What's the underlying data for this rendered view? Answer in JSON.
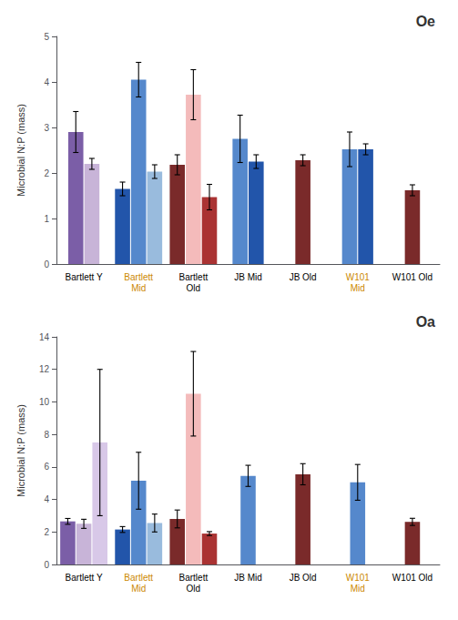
{
  "chart_data": [
    {
      "type": "bar",
      "title": "Oe",
      "ylabel": "Microbial N:P (mass)",
      "categories": [
        "Bartlett Y",
        "Bartlett\nMid",
        "Bartlett\nOld",
        "JB Mid",
        "JB Old",
        "W101\nMid",
        "W101 Old"
      ],
      "label_colors": [
        "black",
        "#CC8800",
        "black",
        "black",
        "black",
        "#CC8800",
        "black"
      ],
      "values": [
        [
          2.9,
          2.2
        ],
        [
          1.65,
          4.05,
          2.03
        ],
        [
          2.18,
          3.72,
          1.47
        ],
        [
          2.75,
          2.25
        ],
        [
          2.28
        ],
        [
          2.52,
          2.52
        ],
        [
          1.62
        ]
      ],
      "errors": [
        [
          0.45,
          0.12
        ],
        [
          0.15,
          0.38,
          0.15
        ],
        [
          0.22,
          0.55,
          0.28
        ],
        [
          0.52,
          0.15
        ],
        [
          0.12
        ],
        [
          0.38,
          0.12
        ],
        [
          0.12
        ]
      ],
      "colors": [
        [
          "#7B5EA7",
          "#C8B4D8"
        ],
        [
          "#2255AA",
          "#5588CC",
          "#99BBDD"
        ],
        [
          "#7A2A2A",
          "#F4BBBB",
          "#AA3333"
        ],
        [
          "#5588CC",
          "#2255AA"
        ],
        [
          "#7A2A2A"
        ],
        [
          "#5588CC",
          "#2255AA"
        ],
        [
          "#7A2A2A"
        ]
      ],
      "ylim": [
        0,
        5
      ],
      "yticks": [
        0,
        1,
        2,
        3,
        4,
        5
      ],
      "grid": false
    },
    {
      "type": "bar",
      "title": "Oa",
      "ylabel": "Microbial N:P (mass)",
      "categories": [
        "Bartlett Y",
        "Bartlett\nMid",
        "Bartlett\nOld",
        "JB Mid",
        "JB Old",
        "W101\nMid",
        "W101 Old"
      ],
      "label_colors": [
        "black",
        "#CC8800",
        "black",
        "black",
        "black",
        "#CC8800",
        "black"
      ],
      "values": [
        [
          2.65,
          2.5,
          7.5
        ],
        [
          2.15,
          5.15,
          2.55
        ],
        [
          2.8,
          10.5,
          1.9
        ],
        [
          5.45
        ],
        [
          5.55
        ],
        [
          5.05
        ],
        [
          2.62
        ]
      ],
      "errors": [
        [
          0.18,
          0.28,
          4.5
        ],
        [
          0.18,
          1.75,
          0.55
        ],
        [
          0.55,
          2.6,
          0.12
        ],
        [
          0.65
        ],
        [
          0.65
        ],
        [
          1.1
        ],
        [
          0.22
        ]
      ],
      "colors": [
        [
          "#7B5EA7",
          "#C8B4D8",
          "#D8C8E8"
        ],
        [
          "#2255AA",
          "#5588CC",
          "#99BBDD"
        ],
        [
          "#7A2A2A",
          "#F4BBBB",
          "#AA3333"
        ],
        [
          "#5588CC"
        ],
        [
          "#7A2A2A"
        ],
        [
          "#5588CC"
        ],
        [
          "#7A2A2A"
        ]
      ],
      "ylim": [
        0,
        14
      ],
      "yticks": [
        0,
        2,
        4,
        6,
        8,
        10,
        12,
        14
      ],
      "grid": false
    }
  ]
}
